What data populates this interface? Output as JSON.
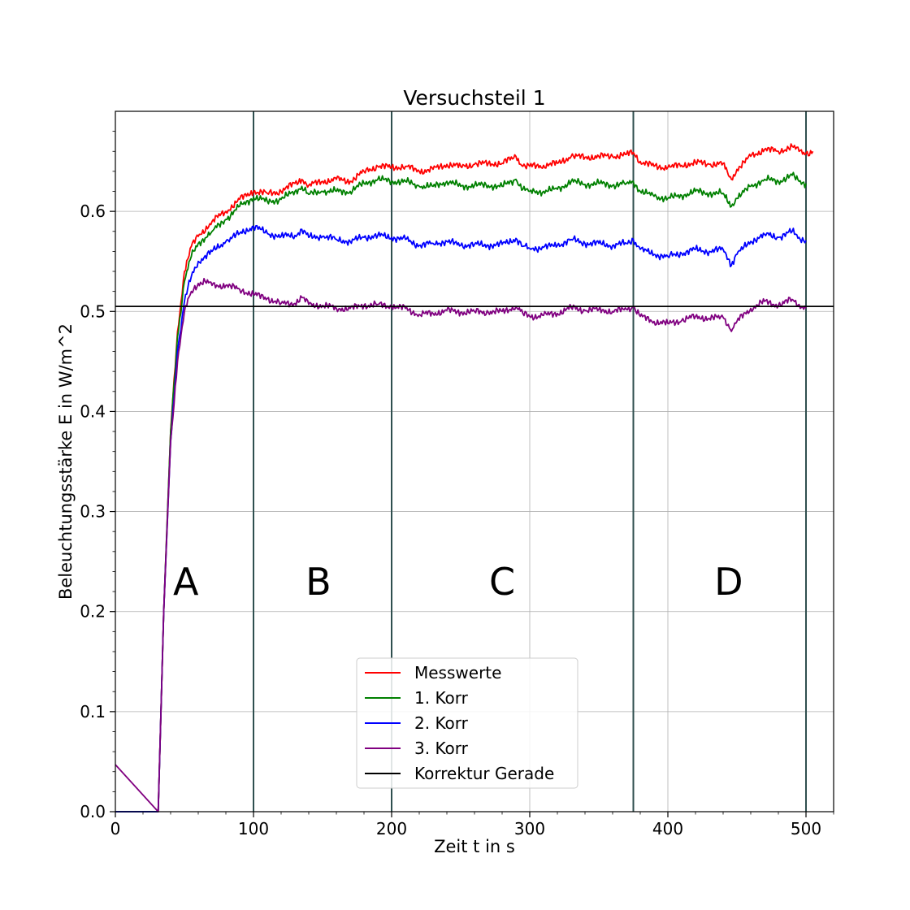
{
  "chart_data": {
    "type": "line",
    "title": "Versuchsteil 1",
    "xlabel": "Zeit t in s",
    "ylabel": "Beleuchtungsstärke E in W/m^2",
    "xlim": [
      0,
      520
    ],
    "ylim": [
      0,
      0.7
    ],
    "xticks": [
      0,
      100,
      200,
      300,
      400,
      500
    ],
    "yticks": [
      0.0,
      0.1,
      0.2,
      0.3,
      0.4,
      0.5,
      0.6
    ],
    "grid": true,
    "legend_position": "lower-center",
    "vertical_lines": [
      100,
      200,
      375,
      500
    ],
    "horizontal_line": {
      "name": "Korrektur Gerade",
      "y": 0.505,
      "color": "#000000"
    },
    "regions": [
      {
        "label": "A",
        "x": 51,
        "y": 0.23
      },
      {
        "label": "B",
        "x": 147,
        "y": 0.23
      },
      {
        "label": "C",
        "x": 280,
        "y": 0.23
      },
      {
        "label": "D",
        "x": 444,
        "y": 0.23
      }
    ],
    "series": [
      {
        "name": "Messwerte",
        "color": "#ff0000",
        "x": [
          0,
          31,
          35,
          40,
          45,
          50,
          55,
          60,
          70,
          80,
          90,
          100,
          110,
          120,
          130,
          135,
          140,
          150,
          160,
          170,
          180,
          190,
          200,
          210,
          220,
          230,
          240,
          250,
          260,
          270,
          280,
          290,
          295,
          300,
          310,
          320,
          330,
          340,
          350,
          360,
          370,
          375,
          380,
          390,
          400,
          410,
          420,
          430,
          440,
          443,
          446,
          450,
          460,
          470,
          480,
          490,
          495,
          500,
          505
        ],
        "values": [
          0,
          0,
          0.2,
          0.38,
          0.48,
          0.54,
          0.565,
          0.575,
          0.59,
          0.6,
          0.612,
          0.62,
          0.618,
          0.62,
          0.628,
          0.632,
          0.626,
          0.63,
          0.632,
          0.63,
          0.64,
          0.645,
          0.644,
          0.645,
          0.64,
          0.642,
          0.647,
          0.645,
          0.647,
          0.648,
          0.648,
          0.655,
          0.645,
          0.645,
          0.646,
          0.648,
          0.655,
          0.654,
          0.655,
          0.655,
          0.657,
          0.659,
          0.65,
          0.645,
          0.644,
          0.646,
          0.649,
          0.647,
          0.648,
          0.64,
          0.632,
          0.642,
          0.655,
          0.662,
          0.66,
          0.665,
          0.66,
          0.658,
          0.66
        ]
      },
      {
        "name": "1. Korr",
        "color": "#008000",
        "x": [
          0,
          31,
          35,
          40,
          45,
          50,
          55,
          60,
          70,
          80,
          90,
          100,
          110,
          120,
          130,
          135,
          140,
          150,
          160,
          170,
          180,
          190,
          200,
          210,
          220,
          230,
          240,
          250,
          260,
          270,
          280,
          290,
          295,
          300,
          310,
          320,
          330,
          340,
          350,
          360,
          370,
          375,
          380,
          390,
          400,
          410,
          420,
          430,
          440,
          443,
          446,
          450,
          460,
          470,
          480,
          490,
          495,
          500
        ],
        "values": [
          0,
          0,
          0.2,
          0.38,
          0.475,
          0.53,
          0.555,
          0.568,
          0.58,
          0.592,
          0.605,
          0.614,
          0.61,
          0.612,
          0.62,
          0.625,
          0.617,
          0.62,
          0.62,
          0.62,
          0.628,
          0.632,
          0.63,
          0.63,
          0.625,
          0.625,
          0.63,
          0.625,
          0.626,
          0.626,
          0.625,
          0.632,
          0.622,
          0.62,
          0.62,
          0.622,
          0.63,
          0.627,
          0.628,
          0.626,
          0.628,
          0.63,
          0.62,
          0.615,
          0.613,
          0.616,
          0.62,
          0.618,
          0.618,
          0.61,
          0.605,
          0.613,
          0.625,
          0.632,
          0.63,
          0.636,
          0.63,
          0.628
        ]
      },
      {
        "name": "2. Korr",
        "color": "#0000ff",
        "x": [
          0,
          31,
          35,
          40,
          45,
          50,
          55,
          60,
          70,
          80,
          90,
          100,
          110,
          120,
          130,
          135,
          140,
          150,
          160,
          170,
          180,
          190,
          200,
          210,
          220,
          230,
          240,
          250,
          260,
          270,
          280,
          290,
          295,
          300,
          310,
          320,
          330,
          340,
          350,
          360,
          370,
          375,
          380,
          390,
          400,
          410,
          420,
          430,
          440,
          443,
          446,
          450,
          460,
          470,
          480,
          490,
          495,
          500
        ],
        "values": [
          0,
          0,
          0.2,
          0.37,
          0.46,
          0.51,
          0.535,
          0.55,
          0.56,
          0.57,
          0.578,
          0.585,
          0.578,
          0.575,
          0.576,
          0.582,
          0.574,
          0.575,
          0.572,
          0.57,
          0.574,
          0.576,
          0.574,
          0.572,
          0.566,
          0.568,
          0.57,
          0.566,
          0.567,
          0.566,
          0.567,
          0.573,
          0.565,
          0.563,
          0.564,
          0.566,
          0.572,
          0.568,
          0.568,
          0.566,
          0.568,
          0.572,
          0.562,
          0.557,
          0.555,
          0.558,
          0.562,
          0.56,
          0.562,
          0.552,
          0.546,
          0.557,
          0.57,
          0.577,
          0.574,
          0.58,
          0.574,
          0.571
        ]
      },
      {
        "name": "3. Korr",
        "color": "#800080",
        "x": [
          0,
          31,
          35,
          40,
          45,
          50,
          55,
          60,
          65,
          70,
          80,
          90,
          100,
          110,
          120,
          130,
          135,
          140,
          150,
          160,
          170,
          180,
          190,
          200,
          210,
          220,
          230,
          240,
          250,
          260,
          270,
          280,
          290,
          295,
          300,
          310,
          320,
          330,
          340,
          350,
          360,
          370,
          375,
          380,
          390,
          400,
          410,
          420,
          430,
          440,
          443,
          446,
          450,
          460,
          470,
          480,
          490,
          495,
          500
        ],
        "values": [
          0.047,
          0,
          0.2,
          0.37,
          0.45,
          0.5,
          0.52,
          0.528,
          0.53,
          0.526,
          0.526,
          0.522,
          0.517,
          0.513,
          0.508,
          0.508,
          0.514,
          0.507,
          0.506,
          0.503,
          0.503,
          0.506,
          0.507,
          0.505,
          0.503,
          0.497,
          0.498,
          0.501,
          0.499,
          0.5,
          0.499,
          0.5,
          0.505,
          0.498,
          0.495,
          0.496,
          0.498,
          0.504,
          0.501,
          0.502,
          0.5,
          0.502,
          0.505,
          0.495,
          0.49,
          0.488,
          0.491,
          0.495,
          0.493,
          0.494,
          0.486,
          0.48,
          0.49,
          0.503,
          0.51,
          0.506,
          0.512,
          0.507,
          0.503
        ]
      }
    ]
  }
}
